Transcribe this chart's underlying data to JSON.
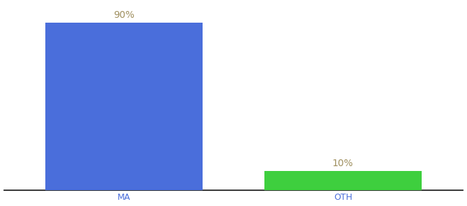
{
  "categories": [
    "MA",
    "OTH"
  ],
  "values": [
    90,
    10
  ],
  "bar_colors": [
    "#4a6edb",
    "#3ecf3e"
  ],
  "value_labels": [
    "90%",
    "10%"
  ],
  "ylim": [
    0,
    100
  ],
  "background_color": "#ffffff",
  "label_color": "#a09060",
  "label_fontsize": 10,
  "tick_fontsize": 9,
  "tick_color": "#4a6edb",
  "bar_width": 0.72,
  "bottom_spine_color": "#111111"
}
